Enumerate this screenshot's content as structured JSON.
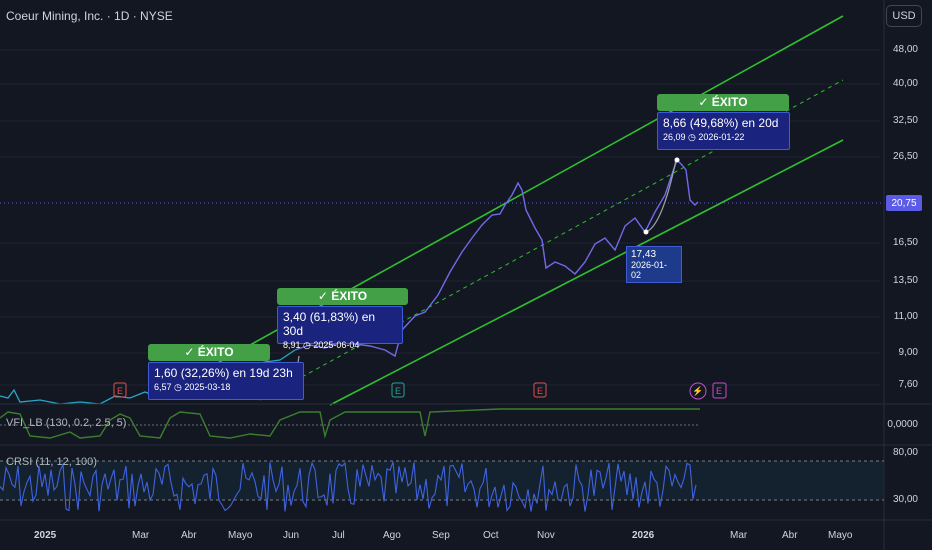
{
  "header": {
    "symbol": "Coeur Mining, Inc. · 1D · NYSE",
    "currency": "USD"
  },
  "price": {
    "last": "20,75",
    "axis_labels": [
      "48,00",
      "40,00",
      "32,50",
      "26,50",
      "16,50",
      "13,50",
      "11,00",
      "9,00",
      "7,60"
    ]
  },
  "indicators": {
    "vfi": {
      "label": "VFI_LB (130, 0.2, 2.5, 5)",
      "axis": "0,0000"
    },
    "crsi": {
      "label": "CRSI (11, 12, 100)",
      "axis": [
        "80,00",
        "30,00"
      ]
    }
  },
  "signals": [
    {
      "badge": "✓ ÉXITO",
      "main": "1,60 (32,26%) en 19d 23h",
      "sub": "6,57 ◷ 2025-03-18"
    },
    {
      "badge": "✓ ÉXITO",
      "main": "3,40 (61,83%) en 30d",
      "sub": "8,91 ◷ 2025-06-04"
    },
    {
      "badge": "✓ ÉXITO",
      "main": "8,66 (49,68%) en 20d",
      "sub": "26,09 ◷ 2026-01-22"
    }
  ],
  "low_point": {
    "price": "17,43",
    "date": "2026-01-02"
  },
  "events": [
    "E",
    "E",
    "E",
    "E",
    "⚡",
    "E"
  ],
  "time_axis": [
    "2025",
    "Mar",
    "Abr",
    "Mayo",
    "Jun",
    "Jul",
    "Ago",
    "Sep",
    "Oct",
    "Nov",
    "2026",
    "Mar",
    "Abr",
    "Mayo"
  ],
  "chart_data": {
    "type": "line",
    "price_series": [
      [
        "2025-01-02",
        6.5
      ],
      [
        "2025-01-15",
        6.4
      ],
      [
        "2025-02-01",
        6.6
      ],
      [
        "2025-02-15",
        6.55
      ],
      [
        "2025-03-01",
        6.9
      ],
      [
        "2025-03-18",
        6.57
      ],
      [
        "2025-04-01",
        7.5
      ],
      [
        "2025-04-15",
        7.9
      ],
      [
        "2025-05-01",
        8.3
      ],
      [
        "2025-05-15",
        8.6
      ],
      [
        "2025-06-04",
        8.91
      ],
      [
        "2025-06-20",
        9.3
      ],
      [
        "2025-07-05",
        9.5
      ],
      [
        "2025-07-20",
        9.6
      ],
      [
        "2025-08-05",
        9.8
      ],
      [
        "2025-08-15",
        11.0
      ],
      [
        "2025-09-01",
        13.0
      ],
      [
        "2025-09-15",
        15.5
      ],
      [
        "2025-10-01",
        18.0
      ],
      [
        "2025-10-16",
        23.0
      ],
      [
        "2025-10-25",
        19.5
      ],
      [
        "2025-11-01",
        14.5
      ],
      [
        "2025-11-10",
        15.0
      ],
      [
        "2025-11-20",
        14.5
      ],
      [
        "2025-12-01",
        16.0
      ],
      [
        "2025-12-15",
        17.5
      ],
      [
        "2026-01-02",
        17.43
      ],
      [
        "2026-01-12",
        21.0
      ],
      [
        "2026-01-22",
        26.09
      ],
      [
        "2026-02-01",
        20.75
      ]
    ],
    "channel_lines": [
      {
        "from": [
          "2025-04-01",
          6.5
        ],
        "to": [
          "2026-03-20",
          55.0
        ]
      },
      {
        "from": [
          "2025-07-01",
          5.6
        ],
        "to": [
          "2026-05-20",
          44.0
        ]
      },
      {
        "from": [
          "2025-07-20",
          6.8
        ],
        "to": [
          "2026-05-20",
          32.0
        ]
      }
    ],
    "log_scale": true,
    "ylim": [
      6.5,
      55
    ]
  }
}
